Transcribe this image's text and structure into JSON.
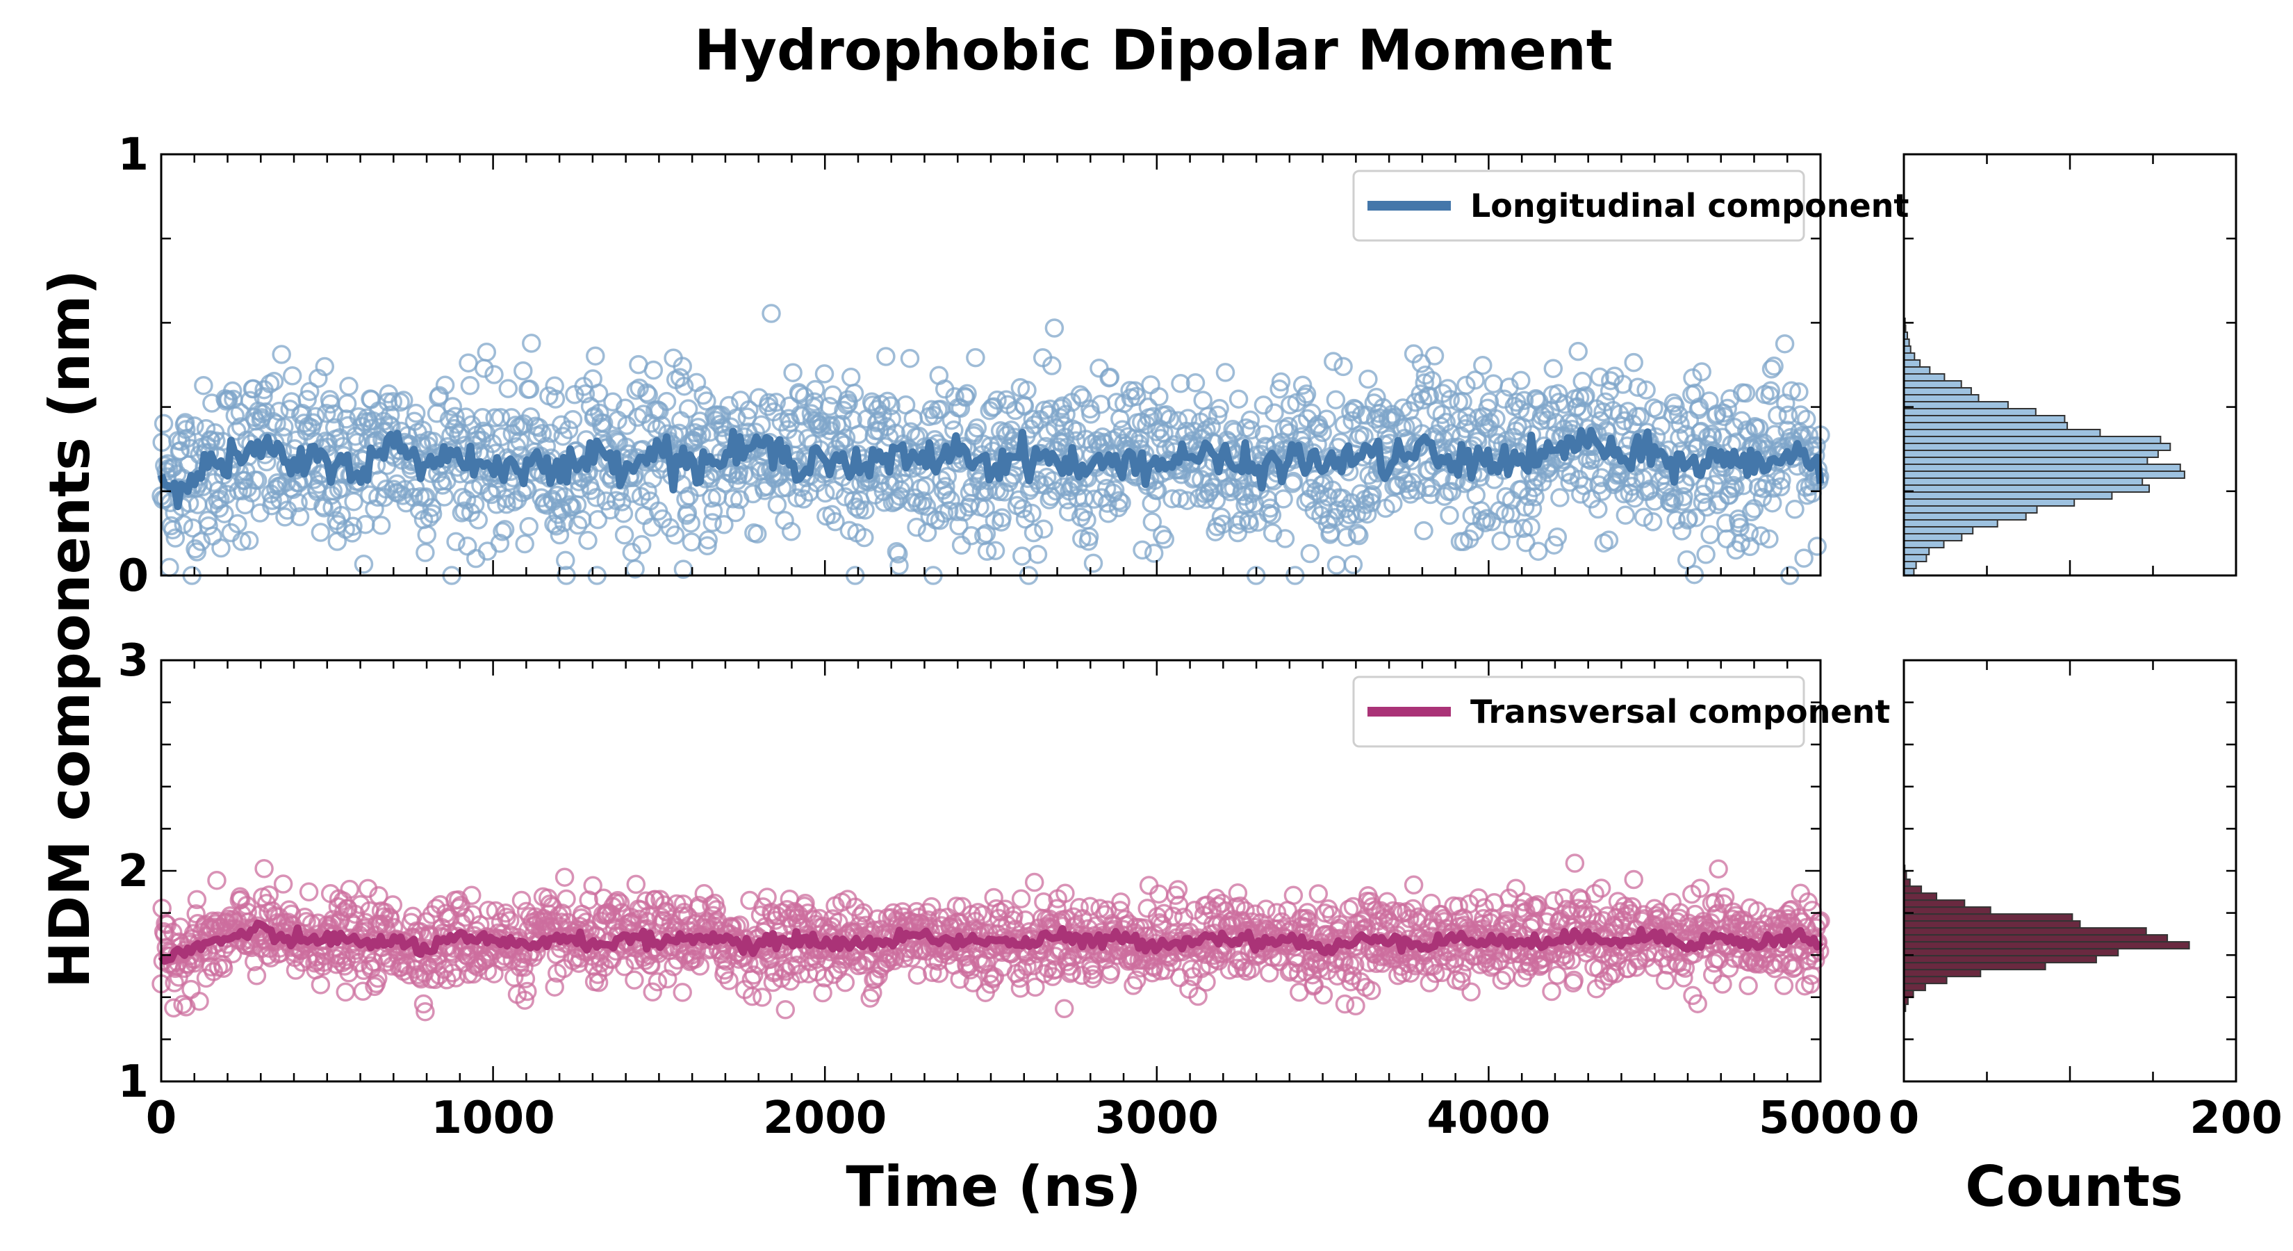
{
  "chart_data": {
    "type": "scatter",
    "title": "Hydrophobic Dipolar Moment",
    "ylabel": "HDM components (nm)",
    "xlabel": "Time (ns)",
    "hist_xlabel": "Counts",
    "xlim": [
      0,
      5000
    ],
    "xticks": [
      "0",
      "1000",
      "2000",
      "3000",
      "4000",
      "5000"
    ],
    "hist_xlim": [
      0,
      200
    ],
    "hist_xticks": [
      "0",
      "200"
    ],
    "panels": [
      {
        "name": "Longitudinal component",
        "ylim": [
          0,
          1
        ],
        "yticks": [
          "0",
          "1"
        ],
        "color": "#4477aa",
        "marker_color": "#7fa6c9",
        "hist_color": "#9ec2e0",
        "mean": 0.27,
        "scatter_sd": 0.1,
        "running_mean_sd": 0.035,
        "hist_peak_count": 163,
        "hist_range": [
          0.0,
          0.65
        ],
        "series": [
          {
            "x": 0,
            "y": 0.22
          },
          {
            "x": 100,
            "y": 0.24
          },
          {
            "x": 200,
            "y": 0.27
          },
          {
            "x": 300,
            "y": 0.3
          },
          {
            "x": 400,
            "y": 0.26
          },
          {
            "x": 500,
            "y": 0.28
          },
          {
            "x": 600,
            "y": 0.25
          },
          {
            "x": 700,
            "y": 0.31
          },
          {
            "x": 800,
            "y": 0.27
          },
          {
            "x": 900,
            "y": 0.29
          },
          {
            "x": 1000,
            "y": 0.25
          },
          {
            "x": 1100,
            "y": 0.28
          },
          {
            "x": 1200,
            "y": 0.24
          },
          {
            "x": 1300,
            "y": 0.29
          },
          {
            "x": 1400,
            "y": 0.27
          },
          {
            "x": 1500,
            "y": 0.3
          },
          {
            "x": 1600,
            "y": 0.26
          },
          {
            "x": 1700,
            "y": 0.28
          },
          {
            "x": 1800,
            "y": 0.31
          },
          {
            "x": 1900,
            "y": 0.27
          },
          {
            "x": 2000,
            "y": 0.29
          },
          {
            "x": 2100,
            "y": 0.25
          },
          {
            "x": 2200,
            "y": 0.28
          },
          {
            "x": 2300,
            "y": 0.27
          },
          {
            "x": 2400,
            "y": 0.3
          },
          {
            "x": 2500,
            "y": 0.26
          },
          {
            "x": 2600,
            "y": 0.29
          },
          {
            "x": 2700,
            "y": 0.27
          },
          {
            "x": 2800,
            "y": 0.25
          },
          {
            "x": 2900,
            "y": 0.28
          },
          {
            "x": 3000,
            "y": 0.26
          },
          {
            "x": 3100,
            "y": 0.29
          },
          {
            "x": 3200,
            "y": 0.27
          },
          {
            "x": 3300,
            "y": 0.25
          },
          {
            "x": 3400,
            "y": 0.28
          },
          {
            "x": 3500,
            "y": 0.26
          },
          {
            "x": 3600,
            "y": 0.29
          },
          {
            "x": 3700,
            "y": 0.27
          },
          {
            "x": 3800,
            "y": 0.3
          },
          {
            "x": 3900,
            "y": 0.26
          },
          {
            "x": 4000,
            "y": 0.28
          },
          {
            "x": 4100,
            "y": 0.27
          },
          {
            "x": 4200,
            "y": 0.29
          },
          {
            "x": 4300,
            "y": 0.33
          },
          {
            "x": 4400,
            "y": 0.27
          },
          {
            "x": 4500,
            "y": 0.29
          },
          {
            "x": 4600,
            "y": 0.26
          },
          {
            "x": 4700,
            "y": 0.28
          },
          {
            "x": 4800,
            "y": 0.26
          },
          {
            "x": 4900,
            "y": 0.29
          },
          {
            "x": 5000,
            "y": 0.27
          }
        ]
      },
      {
        "name": "Transversal component",
        "ylim": [
          1,
          3
        ],
        "yticks": [
          "1",
          "2",
          "3"
        ],
        "color": "#aa3377",
        "marker_color": "#cc6d9e",
        "hist_color": "#6a2940",
        "mean": 1.67,
        "scatter_sd": 0.1,
        "running_mean_sd": 0.03,
        "hist_peak_count": 165,
        "hist_range": [
          1.3,
          2.0
        ],
        "series": [
          {
            "x": 0,
            "y": 1.58
          },
          {
            "x": 100,
            "y": 1.63
          },
          {
            "x": 200,
            "y": 1.68
          },
          {
            "x": 300,
            "y": 1.72
          },
          {
            "x": 400,
            "y": 1.66
          },
          {
            "x": 500,
            "y": 1.69
          },
          {
            "x": 600,
            "y": 1.65
          },
          {
            "x": 700,
            "y": 1.67
          },
          {
            "x": 800,
            "y": 1.63
          },
          {
            "x": 900,
            "y": 1.68
          },
          {
            "x": 1000,
            "y": 1.66
          },
          {
            "x": 1100,
            "y": 1.64
          },
          {
            "x": 1200,
            "y": 1.69
          },
          {
            "x": 1300,
            "y": 1.65
          },
          {
            "x": 1400,
            "y": 1.68
          },
          {
            "x": 1500,
            "y": 1.66
          },
          {
            "x": 1600,
            "y": 1.69
          },
          {
            "x": 1700,
            "y": 1.67
          },
          {
            "x": 1800,
            "y": 1.64
          },
          {
            "x": 1900,
            "y": 1.68
          },
          {
            "x": 2000,
            "y": 1.66
          },
          {
            "x": 2100,
            "y": 1.65
          },
          {
            "x": 2200,
            "y": 1.67
          },
          {
            "x": 2300,
            "y": 1.7
          },
          {
            "x": 2400,
            "y": 1.66
          },
          {
            "x": 2500,
            "y": 1.68
          },
          {
            "x": 2600,
            "y": 1.65
          },
          {
            "x": 2700,
            "y": 1.69
          },
          {
            "x": 2800,
            "y": 1.66
          },
          {
            "x": 2900,
            "y": 1.68
          },
          {
            "x": 3000,
            "y": 1.65
          },
          {
            "x": 3100,
            "y": 1.67
          },
          {
            "x": 3200,
            "y": 1.69
          },
          {
            "x": 3300,
            "y": 1.66
          },
          {
            "x": 3400,
            "y": 1.68
          },
          {
            "x": 3500,
            "y": 1.62
          },
          {
            "x": 3600,
            "y": 1.66
          },
          {
            "x": 3700,
            "y": 1.69
          },
          {
            "x": 3800,
            "y": 1.65
          },
          {
            "x": 3900,
            "y": 1.68
          },
          {
            "x": 4000,
            "y": 1.66
          },
          {
            "x": 4100,
            "y": 1.67
          },
          {
            "x": 4200,
            "y": 1.65
          },
          {
            "x": 4300,
            "y": 1.7
          },
          {
            "x": 4400,
            "y": 1.67
          },
          {
            "x": 4500,
            "y": 1.69
          },
          {
            "x": 4600,
            "y": 1.66
          },
          {
            "x": 4700,
            "y": 1.68
          },
          {
            "x": 4800,
            "y": 1.65
          },
          {
            "x": 4900,
            "y": 1.69
          },
          {
            "x": 5000,
            "y": 1.67
          }
        ]
      }
    ],
    "legend_placement": "top-right",
    "grid": false
  }
}
